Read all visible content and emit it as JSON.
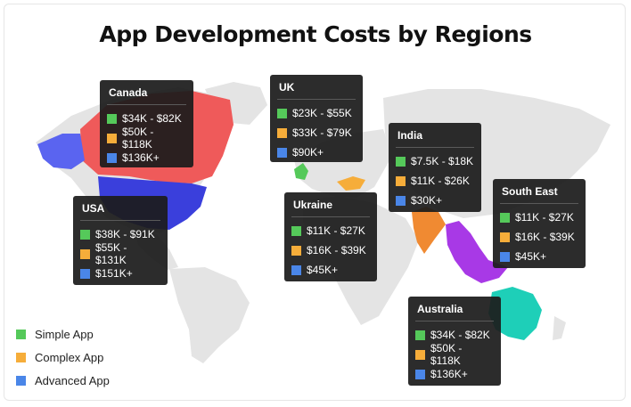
{
  "title": "App Development Costs by Regions",
  "colors": {
    "simple": "#55c95a",
    "complex": "#f6ad3a",
    "advanced": "#4a86e8"
  },
  "legend": [
    {
      "key": "simple",
      "label": "Simple App"
    },
    {
      "key": "complex",
      "label": "Complex App"
    },
    {
      "key": "advanced",
      "label": "Advanced App"
    }
  ],
  "regions": {
    "canada": {
      "name": "Canada",
      "simple": "$34K - $82K",
      "complex": "$50K - $118K",
      "advanced": "$136K+"
    },
    "uk": {
      "name": "UK",
      "simple": "$23K - $55K",
      "complex": "$33K - $79K",
      "advanced": "$90K+"
    },
    "india": {
      "name": "India",
      "simple": "$7.5K - $18K",
      "complex": "$11K - $26K",
      "advanced": "$30K+"
    },
    "usa": {
      "name": "USA",
      "simple": "$38K - $91K",
      "complex": "$55K - $131K",
      "advanced": "$151K+"
    },
    "ukraine": {
      "name": "Ukraine",
      "simple": "$11K - $27K",
      "complex": "$16K - $39K",
      "advanced": "$45K+"
    },
    "southeast": {
      "name": "South East",
      "simple": "$11K - $27K",
      "complex": "$16K - $39K",
      "advanced": "$45K+"
    },
    "australia": {
      "name": "Australia",
      "simple": "$34K - $82K",
      "complex": "$50K - $118K",
      "advanced": "$136K+"
    }
  }
}
